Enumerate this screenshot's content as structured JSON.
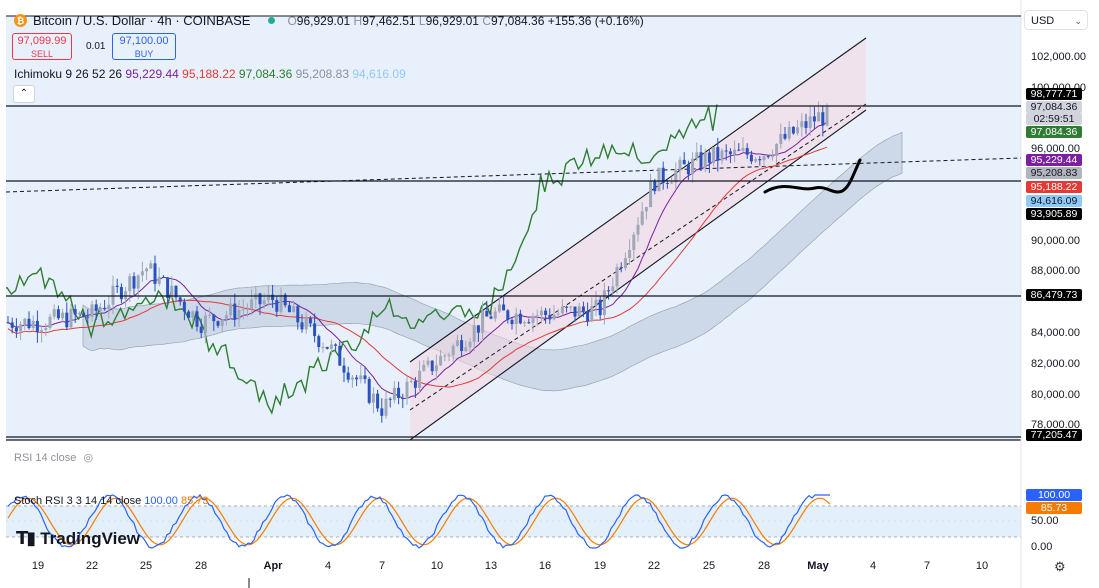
{
  "header": {
    "title": "Bitcoin / U.S. Dollar · 4h · COINBASE",
    "open": "96,929.01",
    "high": "97,462.51",
    "low": "96,929.01",
    "close": "97,084.36",
    "change": "+155.36 (+0.16%)"
  },
  "trade": {
    "sell_price": "97,099.99",
    "sell_label": "SELL",
    "spread": "0.01",
    "buy_price": "97,100.00",
    "buy_label": "BUY"
  },
  "ichimoku": {
    "label": "Ichimoku 9 26 52 26",
    "v1": "95,229.44",
    "v2": "95,188.22",
    "v3": "97,084.36",
    "v4": "95,208.83",
    "v5": "94,616.09",
    "colors": [
      "#7b1fa2",
      "#e53935",
      "#2e7d32",
      "#8c919c",
      "#90caf9"
    ]
  },
  "currency": "USD",
  "price_axis": [
    "102,000.00",
    "100,000.00",
    "96,000.00",
    "90,000.00",
    "88,000.00",
    "84,000.00",
    "82,000.00",
    "80,000.00",
    "78,000.00"
  ],
  "price_tags": [
    {
      "text": "98,777.71",
      "bg": "#000000"
    },
    {
      "text": "97,084.36",
      "bg": "#d1d4dc",
      "fg": "#131722"
    },
    {
      "text": "02:59:51",
      "bg": "#d1d4dc",
      "fg": "#131722"
    },
    {
      "text": "97,084.36",
      "bg": "#2e7d32"
    },
    {
      "text": "95,229.44",
      "bg": "#7b1fa2"
    },
    {
      "text": "95,208.83",
      "bg": "#b2b5be",
      "fg": "#131722"
    },
    {
      "text": "95,188.22",
      "bg": "#e53935"
    },
    {
      "text": "94,616.09",
      "bg": "#90caf9",
      "fg": "#131722"
    },
    {
      "text": "93,905.89",
      "bg": "#000000"
    },
    {
      "text": "86,479.73",
      "bg": "#000000"
    },
    {
      "text": "77,205.47",
      "bg": "#000000"
    }
  ],
  "rsi_label": "RSI 14 close",
  "stoch": {
    "label": "Stoch RSI 3 3 14 14 close",
    "k": "100.00",
    "d": "85.73",
    "k_color": "#2962ff",
    "d_color": "#f57c00",
    "axis": [
      "100.00",
      "85.73",
      "50.00",
      "0.00"
    ]
  },
  "x_axis": [
    "19",
    "22",
    "25",
    "28",
    "Apr",
    "4",
    "7",
    "10",
    "13",
    "16",
    "19",
    "22",
    "25",
    "28",
    "May",
    "4",
    "7",
    "10"
  ],
  "brand": "TradingView",
  "chart_data": {
    "type": "candlestick",
    "title": "Bitcoin / U.S. Dollar · 4h · COINBASE",
    "y_range": [
      76500,
      103500
    ],
    "horizontal_levels": [
      98777.71,
      93905.89,
      86479.73,
      77205.47
    ],
    "close_series": {
      "dates": [
        "Mar 19",
        "Mar 22",
        "Mar 25",
        "Mar 28",
        "Apr 1",
        "Apr 4",
        "Apr 7",
        "Apr 10",
        "Apr 13",
        "Apr 16",
        "Apr 19",
        "Apr 22",
        "Apr 25",
        "Apr 28",
        "May 1"
      ],
      "values": [
        84000,
        84500,
        87500,
        84000,
        85500,
        82500,
        78500,
        81500,
        84500,
        84500,
        84800,
        93000,
        94500,
        94800,
        97084.36
      ]
    },
    "last_price": 97084.36,
    "stoch_rsi": {
      "k": 100.0,
      "d": 85.73
    }
  }
}
